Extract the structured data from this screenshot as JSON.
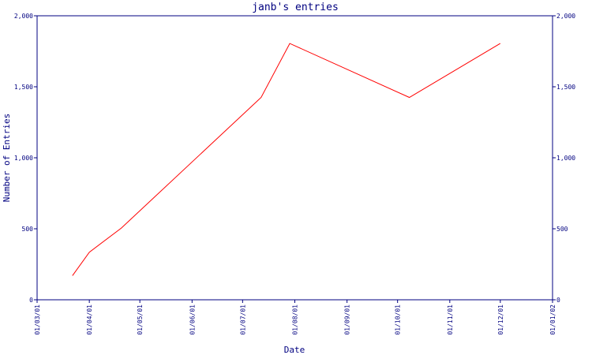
{
  "chart_data": {
    "type": "line",
    "title": "janb's entries",
    "xlabel": "Date",
    "ylabel": "Number of Entries",
    "x_ticks": [
      "01/03/01",
      "01/04/01",
      "01/05/01",
      "01/06/01",
      "01/07/01",
      "01/08/01",
      "01/09/01",
      "01/10/01",
      "01/11/01",
      "01/12/01",
      "01/01/02"
    ],
    "y_ticks_left": [
      "0",
      "500",
      "1,000",
      "1,500",
      "2,000"
    ],
    "y_ticks_right": [
      "0",
      "500",
      "1,000",
      "1,500",
      "2,000"
    ],
    "ylim": [
      0,
      2000
    ],
    "grid": false,
    "series": [
      {
        "x": [
          "2001-03-22",
          "2001-04-01",
          "2001-04-20",
          "2001-07-12",
          "2001-07-29",
          "2001-10-08",
          "2001-12-01"
        ],
        "y": [
          170,
          335,
          505,
          1425,
          1805,
          1425,
          1805
        ]
      }
    ],
    "colors": {
      "axis": "#000080",
      "series": "#ff0000"
    }
  }
}
